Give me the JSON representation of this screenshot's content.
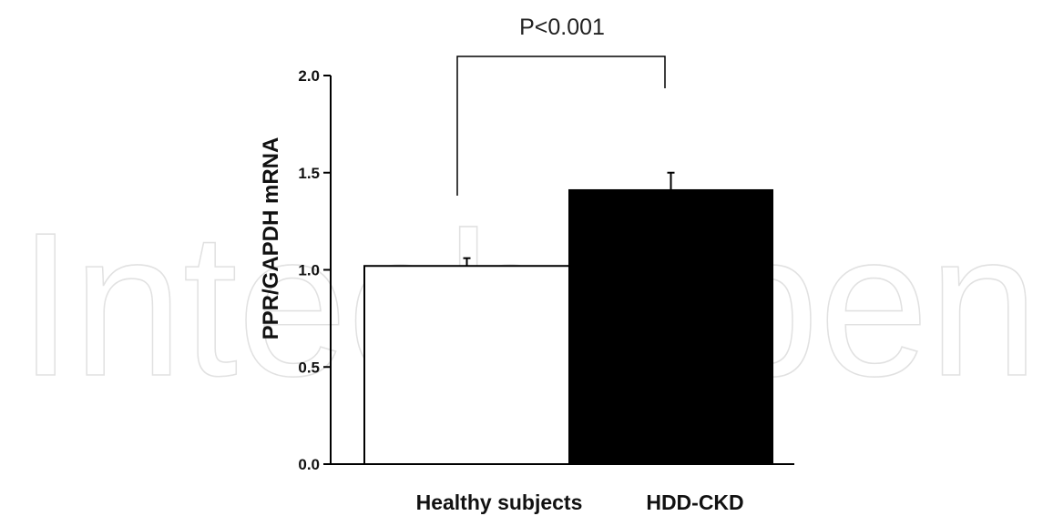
{
  "chart_data": {
    "type": "bar",
    "categories": [
      "Healthy subjects",
      "HDD-CKD"
    ],
    "values": [
      1.02,
      1.41
    ],
    "errors": [
      0.04,
      0.09
    ],
    "bar_colors": [
      "#ffffff",
      "#000000"
    ],
    "ylabel": "PPR/GAPDH mRNA",
    "xlabel": "",
    "ylim": [
      0,
      2.0
    ],
    "yticks": [
      "0.0",
      "0.5",
      "1.0",
      "1.5",
      "2.0"
    ],
    "annotation": "P<0.001",
    "grid": false,
    "legend": "none"
  },
  "watermark": "IntechOpen"
}
